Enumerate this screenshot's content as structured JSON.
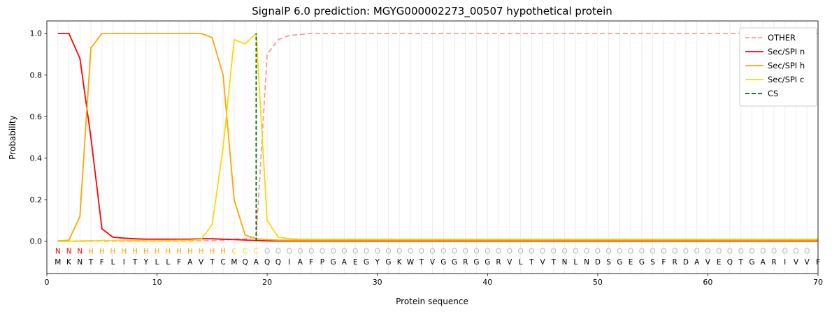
{
  "chart_data": {
    "type": "line",
    "title": "SignalP 6.0 prediction: MGYG000002273_00507 hypothetical protein",
    "xlabel": "Protein sequence",
    "ylabel": "Probability",
    "xlim": [
      0,
      70
    ],
    "ylim": [
      -0.155,
      1.06
    ],
    "xticks": [
      0,
      10,
      20,
      30,
      40,
      50,
      60,
      70
    ],
    "yticks": [
      "0.0",
      "0.2",
      "0.4",
      "0.6",
      "0.8",
      "1.0"
    ],
    "grid": "vertical-per-residue",
    "legend_position": "top-right",
    "cs_position": 19,
    "cs_color": "#006400",
    "sequence": "MKNTFLITYLLFAVTCMQAQQIAFPGAEGYGKWTVGGRGGRVLTVTNLNDSGEGSFRDAVEQTGARIVVF",
    "region_labels": "NNNHHHHHHHHHHHHHCCCOOOOOOOOOOOOOOOOOOOOOOOOOOOOOOOOOOOOOOOOOOOOOOOOOO",
    "region_colors": {
      "N": "#ff0000",
      "H": "#ffa500",
      "C": "#ffd700",
      "O": "#b3b3b3"
    },
    "legend": [
      {
        "label": "OTHER",
        "color": "#ff9896",
        "dash": true
      },
      {
        "label": "Sec/SPI n",
        "color": "#ff0000",
        "dash": false
      },
      {
        "label": "Sec/SPI h",
        "color": "#ffa500",
        "dash": false
      },
      {
        "label": "Sec/SPI c",
        "color": "#ffd700",
        "dash": false
      },
      {
        "label": "CS",
        "color": "#006400",
        "dash": true
      }
    ],
    "series": [
      {
        "name": "OTHER",
        "color": "#ff9896",
        "dash": true,
        "values": [
          0,
          0,
          0,
          0.001,
          0.001,
          0.001,
          0.001,
          0.001,
          0.001,
          0.001,
          0.001,
          0.001,
          0.001,
          0.002,
          0.003,
          0.005,
          0.01,
          0.012,
          0.02,
          0.9,
          0.97,
          0.99,
          0.995,
          1.0,
          1.0,
          1.0,
          1.0,
          1.0,
          1.0,
          1.0,
          1.0,
          1.0,
          1.0,
          1.0,
          1.0,
          1.0,
          1.0,
          1.0,
          1.0,
          1.0,
          1.0,
          1.0,
          1.0,
          1.0,
          1.0,
          1.0,
          1.0,
          1.0,
          1.0,
          1.0,
          1.0,
          1.0,
          1.0,
          1.0,
          1.0,
          1.0,
          1.0,
          1.0,
          1.0,
          1.0,
          1.0,
          1.0,
          1.0,
          1.0,
          1.0,
          1.0,
          1.0,
          1.0,
          1.0,
          1.0
        ]
      },
      {
        "name": "Sec/SPI n",
        "color": "#ff0000",
        "dash": false,
        "values": [
          1.0,
          1.0,
          0.88,
          0.5,
          0.06,
          0.02,
          0.015,
          0.012,
          0.01,
          0.01,
          0.01,
          0.01,
          0.01,
          0.012,
          0.012,
          0.01,
          0.008,
          0.006,
          0.004,
          0.002,
          0.001,
          0.001,
          0.001,
          0.001,
          0.001,
          0.001,
          0.001,
          0.001,
          0.001,
          0.001,
          0.001,
          0.001,
          0.001,
          0.001,
          0.001,
          0.001,
          0.001,
          0.001,
          0.001,
          0.001,
          0.001,
          0.001,
          0.001,
          0.001,
          0.001,
          0.001,
          0.001,
          0.001,
          0.001,
          0.001,
          0.001,
          0.001,
          0.001,
          0.001,
          0.001,
          0.001,
          0.001,
          0.001,
          0.001,
          0.001,
          0.001,
          0.001,
          0.001,
          0.001,
          0.001,
          0.001,
          0.001,
          0.001,
          0.001,
          0.001
        ]
      },
      {
        "name": "Sec/SPI h",
        "color": "#ffa500",
        "dash": false,
        "values": [
          0.002,
          0.005,
          0.12,
          0.93,
          1.0,
          1.0,
          1.0,
          1.0,
          1.0,
          1.0,
          1.0,
          1.0,
          1.0,
          1.0,
          0.98,
          0.8,
          0.2,
          0.03,
          0.012,
          0.008,
          0.005,
          0.005,
          0.005,
          0.005,
          0.005,
          0.005,
          0.005,
          0.005,
          0.005,
          0.005,
          0.005,
          0.005,
          0.005,
          0.005,
          0.005,
          0.005,
          0.005,
          0.005,
          0.005,
          0.005,
          0.005,
          0.005,
          0.005,
          0.005,
          0.005,
          0.005,
          0.005,
          0.005,
          0.005,
          0.005,
          0.005,
          0.005,
          0.005,
          0.005,
          0.005,
          0.005,
          0.005,
          0.005,
          0.005,
          0.005,
          0.005,
          0.005,
          0.005,
          0.005,
          0.005,
          0.005,
          0.005,
          0.005,
          0.005,
          0.005
        ]
      },
      {
        "name": "Sec/SPI c",
        "color": "#ffd700",
        "dash": false,
        "values": [
          0.0,
          0.0,
          0.002,
          0.003,
          0.004,
          0.004,
          0.004,
          0.004,
          0.004,
          0.004,
          0.004,
          0.005,
          0.005,
          0.01,
          0.08,
          0.45,
          0.97,
          0.95,
          1.0,
          0.1,
          0.02,
          0.012,
          0.01,
          0.01,
          0.01,
          0.01,
          0.01,
          0.01,
          0.01,
          0.01,
          0.01,
          0.01,
          0.01,
          0.01,
          0.01,
          0.01,
          0.01,
          0.01,
          0.01,
          0.01,
          0.01,
          0.01,
          0.01,
          0.01,
          0.01,
          0.01,
          0.01,
          0.01,
          0.01,
          0.01,
          0.01,
          0.01,
          0.01,
          0.01,
          0.01,
          0.01,
          0.01,
          0.01,
          0.01,
          0.01,
          0.01,
          0.01,
          0.01,
          0.01,
          0.01,
          0.01,
          0.01,
          0.01,
          0.01,
          0.01
        ]
      }
    ]
  }
}
